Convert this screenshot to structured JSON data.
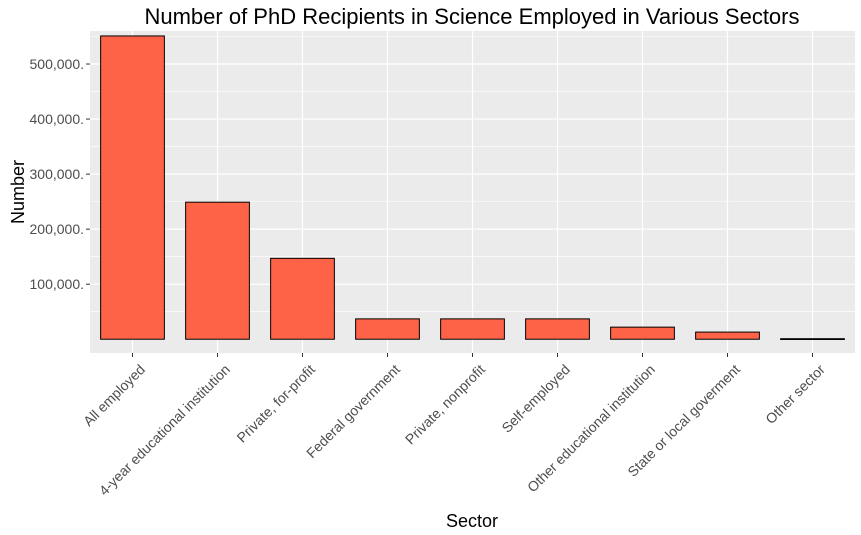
{
  "chart_data": {
    "type": "bar",
    "title": "Number of PhD Recipients in Science Employed in Various Sectors",
    "xlabel": "Sector",
    "ylabel": "Number",
    "categories": [
      "All employed",
      "4-year educational institution",
      "Private, for-profit",
      "Federal government",
      "Private, nonprofit",
      "Self-employed",
      "Other educational institution",
      "State or local goverment",
      "Other sector"
    ],
    "values": [
      551000,
      249000,
      147000,
      37000,
      37000,
      37000,
      22000,
      13000,
      1000
    ],
    "yticks": [
      100000,
      200000,
      300000,
      400000,
      500000
    ],
    "ytick_labels": [
      "100,000.",
      "200,000.",
      "300,000.",
      "400,000.",
      "500,000."
    ],
    "ylim": [
      -25000,
      560000
    ],
    "grid": true,
    "colors": {
      "bar_fill": "#ff6347",
      "bar_stroke": "#000000",
      "panel_bg": "#ebebeb",
      "grid": "#ffffff"
    }
  }
}
